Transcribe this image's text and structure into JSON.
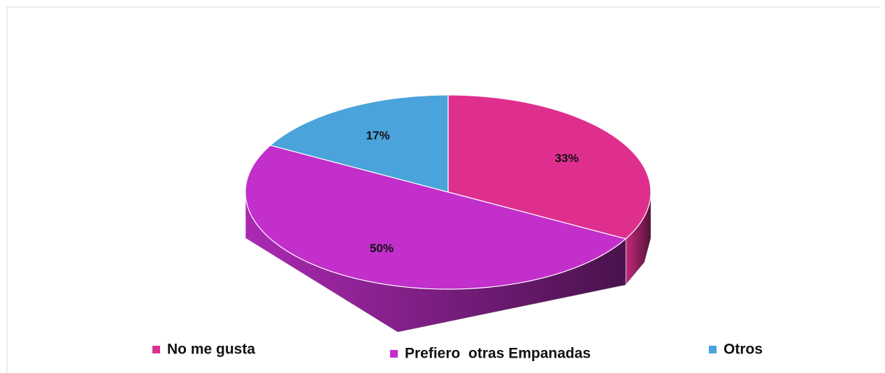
{
  "chart_data": {
    "type": "pie",
    "categories": [
      "No me gusta",
      "Prefiero  otras Empanadas",
      "Otros"
    ],
    "values": [
      33,
      50,
      17
    ],
    "value_labels": [
      "33%",
      "50%",
      "17%"
    ],
    "colors": [
      "#df2f8e",
      "#c22fcb",
      "#4aa3da"
    ],
    "legend": "bottom"
  }
}
